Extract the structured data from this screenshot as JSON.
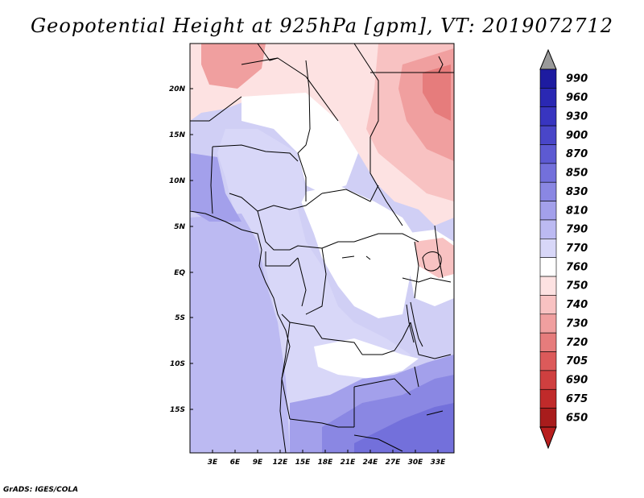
{
  "title": "Geopotential Height at 925hPa [gpm], VT: 2019072712",
  "footer": "GrADS: IGES/COLA",
  "map": {
    "lat_labels": [
      "20N",
      "15N",
      "10N",
      "5N",
      "EQ",
      "5S",
      "10S",
      "15S"
    ],
    "lon_labels": [
      "3E",
      "6E",
      "9E",
      "12E",
      "15E",
      "18E",
      "21E",
      "24E",
      "27E",
      "30E",
      "33E"
    ]
  },
  "colorbar": {
    "levels": [
      "990",
      "960",
      "930",
      "900",
      "870",
      "850",
      "830",
      "810",
      "790",
      "770",
      "760",
      "750",
      "740",
      "730",
      "720",
      "705",
      "690",
      "675",
      "650"
    ],
    "colors": [
      "#1d1ba0",
      "#2a28b3",
      "#3835c0",
      "#4946c8",
      "#5d5ad2",
      "#7370db",
      "#8a87e3",
      "#a3a0eb",
      "#bcbaf2",
      "#d8d7f8",
      "#ffffff",
      "#fde2e2",
      "#f8c2c2",
      "#f09f9f",
      "#e67c7c",
      "#dc5a5a",
      "#cf3f3f",
      "#c02a2a",
      "#a81c1c"
    ],
    "over_color": "#9a9a9a",
    "under_color": "#b81e1e"
  }
}
